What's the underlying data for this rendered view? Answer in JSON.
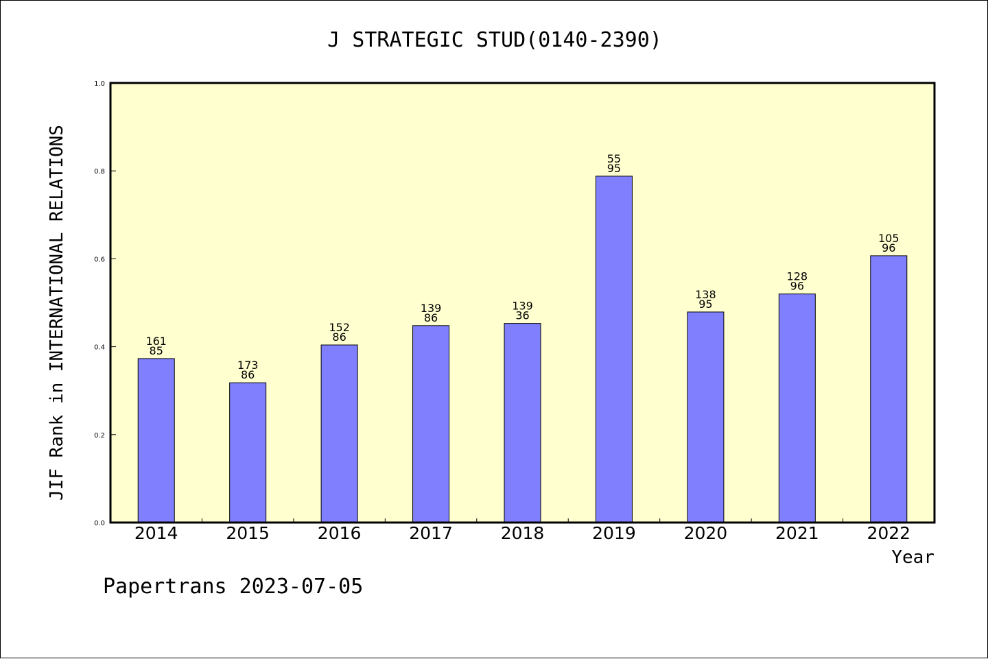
{
  "chart_data": {
    "type": "bar",
    "title": "J STRATEGIC STUD(0140-2390)",
    "xlabel": "Year",
    "ylabel": "JIF Rank in INTERNATIONAL RELATIONS",
    "ylim": [
      0,
      1.0
    ],
    "yticks": [
      "0.0",
      "0.2",
      "0.4",
      "0.6",
      "0.8",
      "1.0"
    ],
    "grid": false,
    "categories": [
      "2014",
      "2015",
      "2016",
      "2017",
      "2018",
      "2019",
      "2020",
      "2021",
      "2022"
    ],
    "values": [
      0.373,
      0.318,
      0.404,
      0.448,
      0.453,
      0.788,
      0.479,
      0.52,
      0.607
    ],
    "labels_top": [
      "161",
      "173",
      "152",
      "139",
      "139",
      "55",
      "138",
      "128",
      "105"
    ],
    "labels_bottom": [
      "85",
      "86",
      "86",
      "86",
      "36",
      "95",
      "95",
      "96",
      "96"
    ],
    "bar_color": "#8080ff",
    "plot_background": "#ffffd0"
  },
  "footer": "Papertrans 2023-07-05"
}
